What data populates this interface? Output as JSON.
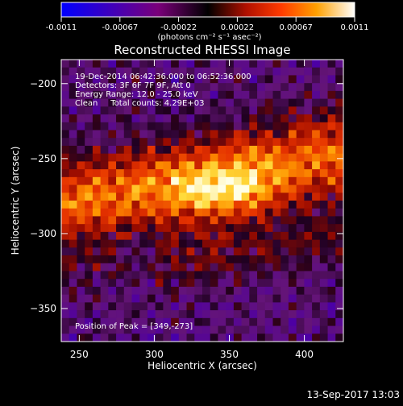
{
  "chart_data": {
    "type": "heatmap",
    "title": "Reconstructed RHESSI Image",
    "xlabel": "Heliocentric X (arcsec)",
    "ylabel": "Heliocentric Y (arcsec)",
    "xlim": [
      238,
      426
    ],
    "ylim": [
      -372,
      -184
    ],
    "x_ticks": [
      250,
      300,
      350,
      400
    ],
    "y_ticks": [
      -200,
      -250,
      -300,
      -350
    ],
    "x_tick_labels": [
      "250",
      "300",
      "350",
      "400"
    ],
    "y_tick_labels": [
      "−200",
      "−250",
      "−300",
      "−350"
    ],
    "annotations": [
      "19-Dec-2014 06:42:36.000 to 06:52:36.000",
      "Detectors: 3F 6F 7F 9F, Att 0",
      "Energy Range: 12.0 - 25.0 keV",
      "Clean     Total counts: 4.29E+03"
    ],
    "peak_label": "Position of Peak = [349,-273]",
    "peak": [
      349,
      -273
    ],
    "colorbar": {
      "range": [
        -0.0011,
        0.0011
      ],
      "tick_labels": [
        "-0.0011",
        "-0.00067",
        "-0.00022",
        "0.00022",
        "0.00067",
        "0.0011"
      ],
      "unit": "(photons cm⁻² s⁻¹ asec⁻²)"
    },
    "footer": "13-Sep-2017 13:03"
  }
}
